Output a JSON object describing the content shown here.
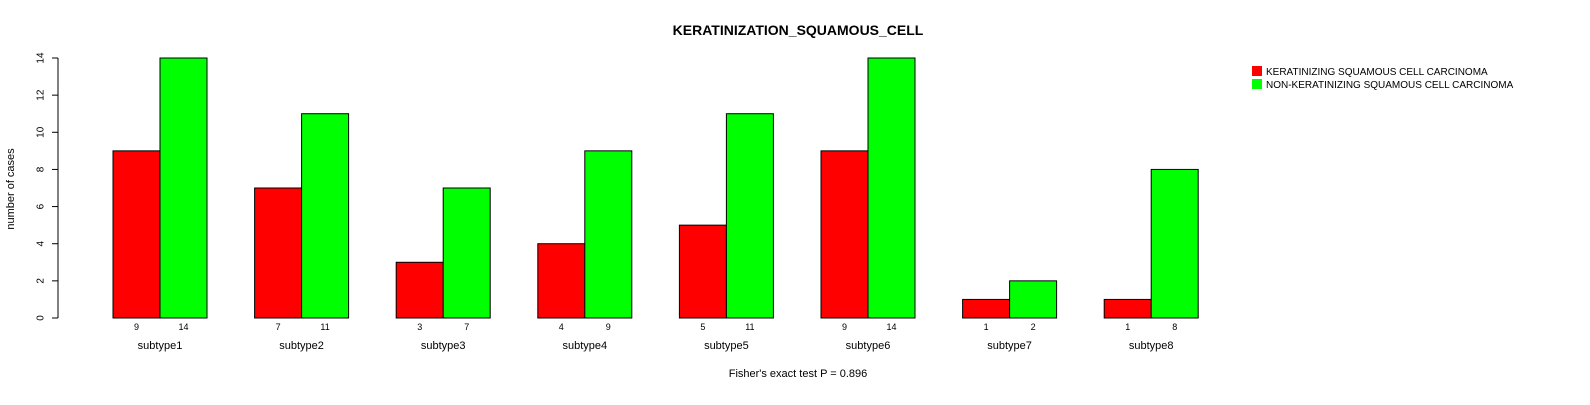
{
  "chart_data": {
    "type": "bar",
    "title": "KERATINIZATION_SQUAMOUS_CELL",
    "xlabel": "Fisher's exact test P = 0.896",
    "ylabel": "number of cases",
    "ylim": [
      0,
      14
    ],
    "yticks": [
      0,
      2,
      4,
      6,
      8,
      10,
      12,
      14
    ],
    "categories": [
      "subtype1",
      "subtype2",
      "subtype3",
      "subtype4",
      "subtype5",
      "subtype6",
      "subtype7",
      "subtype8"
    ],
    "series": [
      {
        "name": "KERATINIZING SQUAMOUS CELL CARCINOMA",
        "color": "#ff0000",
        "values": [
          9,
          7,
          3,
          4,
          5,
          9,
          1,
          1
        ]
      },
      {
        "name": "NON-KERATINIZING SQUAMOUS CELL CARCINOMA",
        "color": "#00ff00",
        "values": [
          14,
          11,
          7,
          9,
          11,
          14,
          2,
          8
        ]
      }
    ],
    "legend_position": "top-right",
    "grid": false
  }
}
